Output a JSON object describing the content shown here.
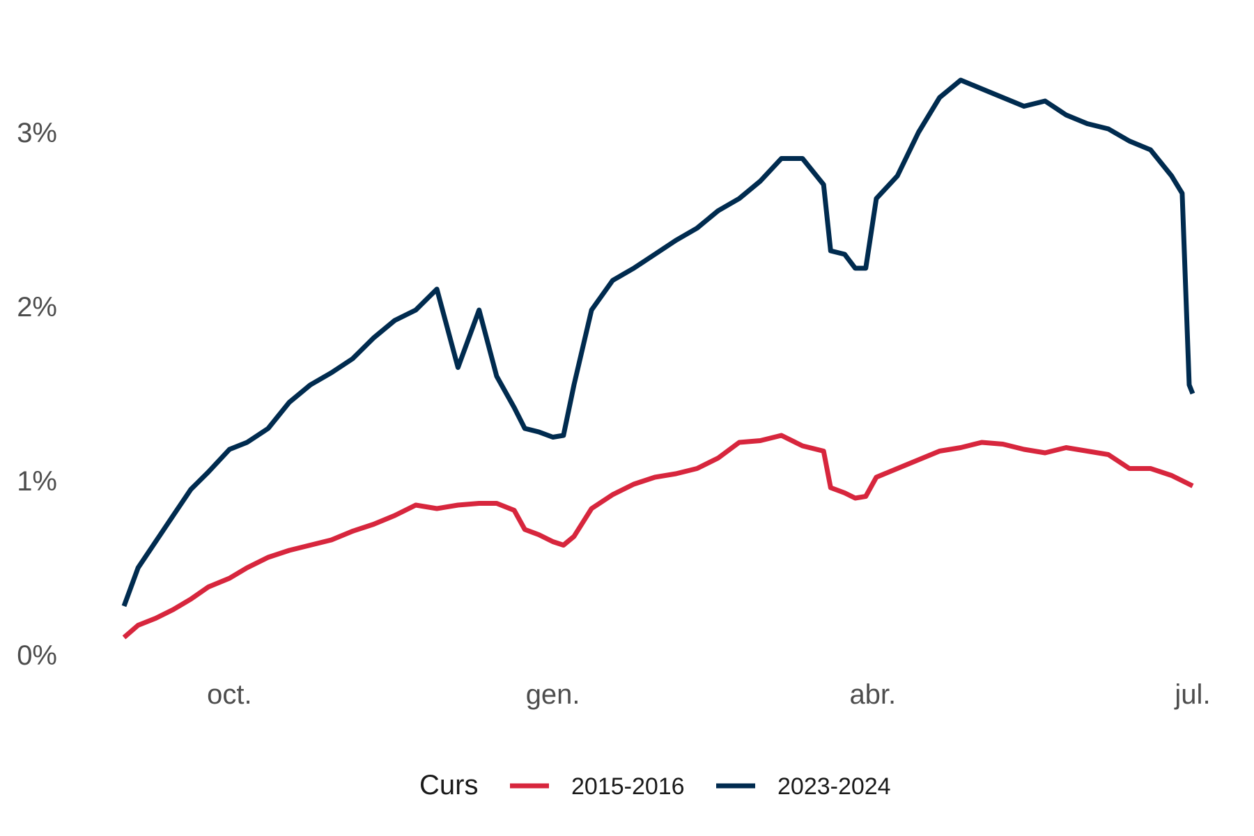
{
  "chart_data": {
    "type": "line",
    "title": "",
    "xlabel": "",
    "ylabel": "",
    "ylim": [
      0,
      3.6
    ],
    "xlim": [
      "2023-09-01",
      "2024-07-01"
    ],
    "grid": false,
    "legend_position": "bottom",
    "y_ticks": [
      {
        "value": 0,
        "label": "0%"
      },
      {
        "value": 1,
        "label": "1%"
      },
      {
        "value": 2,
        "label": "2%"
      },
      {
        "value": 3,
        "label": "3%"
      }
    ],
    "x_ticks": [
      {
        "value": "2023-10-01",
        "label": "oct."
      },
      {
        "value": "2024-01-01",
        "label": "gen."
      },
      {
        "value": "2024-04-01",
        "label": "abr."
      },
      {
        "value": "2024-07-01",
        "label": "jul."
      }
    ],
    "legend": {
      "title": "Curs"
    },
    "series": [
      {
        "name": "2015-2016",
        "color": "#d7263d",
        "x": [
          "2023-09-01",
          "2023-09-05",
          "2023-09-10",
          "2023-09-15",
          "2023-09-20",
          "2023-09-25",
          "2023-10-01",
          "2023-10-06",
          "2023-10-12",
          "2023-10-18",
          "2023-10-24",
          "2023-10-30",
          "2023-11-05",
          "2023-11-11",
          "2023-11-17",
          "2023-11-23",
          "2023-11-29",
          "2023-12-05",
          "2023-12-11",
          "2023-12-16",
          "2023-12-21",
          "2023-12-24",
          "2023-12-28",
          "2024-01-01",
          "2024-01-04",
          "2024-01-07",
          "2024-01-12",
          "2024-01-18",
          "2024-01-24",
          "2024-01-30",
          "2024-02-05",
          "2024-02-11",
          "2024-02-17",
          "2024-02-23",
          "2024-02-29",
          "2024-03-06",
          "2024-03-12",
          "2024-03-18",
          "2024-03-20",
          "2024-03-24",
          "2024-03-27",
          "2024-03-30",
          "2024-04-02",
          "2024-04-08",
          "2024-04-14",
          "2024-04-20",
          "2024-04-26",
          "2024-05-02",
          "2024-05-08",
          "2024-05-14",
          "2024-05-20",
          "2024-05-26",
          "2024-06-01",
          "2024-06-07",
          "2024-06-13",
          "2024-06-19",
          "2024-06-25",
          "2024-07-01"
        ],
        "values": [
          0.1,
          0.17,
          0.21,
          0.26,
          0.32,
          0.39,
          0.44,
          0.5,
          0.56,
          0.6,
          0.63,
          0.66,
          0.71,
          0.75,
          0.8,
          0.86,
          0.84,
          0.86,
          0.87,
          0.87,
          0.83,
          0.72,
          0.69,
          0.65,
          0.63,
          0.68,
          0.84,
          0.92,
          0.98,
          1.02,
          1.04,
          1.07,
          1.13,
          1.22,
          1.23,
          1.26,
          1.2,
          1.17,
          0.96,
          0.93,
          0.9,
          0.91,
          1.02,
          1.07,
          1.12,
          1.17,
          1.19,
          1.22,
          1.21,
          1.18,
          1.16,
          1.19,
          1.17,
          1.15,
          1.07,
          1.07,
          1.03,
          0.97
        ]
      },
      {
        "name": "2023-2024",
        "color": "#002b4f",
        "x": [
          "2023-09-01",
          "2023-09-05",
          "2023-09-10",
          "2023-09-15",
          "2023-09-20",
          "2023-09-25",
          "2023-10-01",
          "2023-10-06",
          "2023-10-12",
          "2023-10-18",
          "2023-10-24",
          "2023-10-30",
          "2023-11-05",
          "2023-11-11",
          "2023-11-17",
          "2023-11-23",
          "2023-11-29",
          "2023-12-05",
          "2023-12-11",
          "2023-12-16",
          "2023-12-21",
          "2023-12-24",
          "2023-12-28",
          "2024-01-01",
          "2024-01-04",
          "2024-01-07",
          "2024-01-12",
          "2024-01-18",
          "2024-01-24",
          "2024-01-30",
          "2024-02-05",
          "2024-02-11",
          "2024-02-17",
          "2024-02-23",
          "2024-02-29",
          "2024-03-06",
          "2024-03-12",
          "2024-03-18",
          "2024-03-20",
          "2024-03-24",
          "2024-03-27",
          "2024-03-30",
          "2024-04-02",
          "2024-04-08",
          "2024-04-14",
          "2024-04-20",
          "2024-04-26",
          "2024-05-02",
          "2024-05-08",
          "2024-05-14",
          "2024-05-20",
          "2024-05-26",
          "2024-06-01",
          "2024-06-07",
          "2024-06-13",
          "2024-06-19",
          "2024-06-25",
          "2024-06-28",
          "2024-06-30",
          "2024-07-01"
        ],
        "values": [
          0.28,
          0.5,
          0.65,
          0.8,
          0.95,
          1.05,
          1.18,
          1.22,
          1.3,
          1.45,
          1.55,
          1.62,
          1.7,
          1.82,
          1.92,
          1.98,
          2.1,
          1.65,
          1.98,
          1.6,
          1.42,
          1.3,
          1.28,
          1.25,
          1.26,
          1.55,
          1.98,
          2.15,
          2.22,
          2.3,
          2.38,
          2.45,
          2.55,
          2.62,
          2.72,
          2.85,
          2.85,
          2.7,
          2.32,
          2.3,
          2.22,
          2.22,
          2.62,
          2.75,
          3.0,
          3.2,
          3.3,
          3.25,
          3.2,
          3.15,
          3.18,
          3.1,
          3.05,
          3.02,
          2.95,
          2.9,
          2.75,
          2.65,
          1.55,
          1.5
        ]
      }
    ]
  }
}
